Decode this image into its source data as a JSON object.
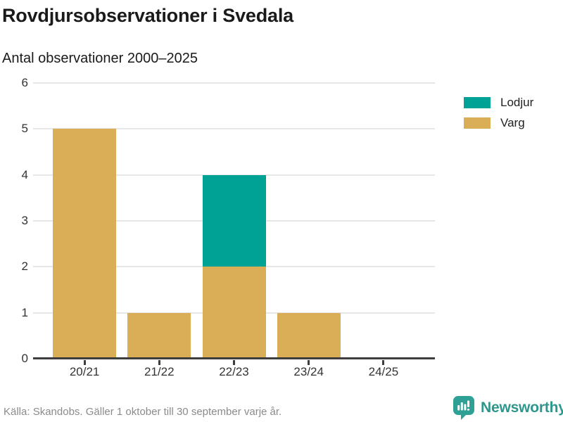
{
  "header": {
    "title": "Rovdjursobservationer i Svedala",
    "subtitle": "Antal observationer 2000–2025"
  },
  "footer": {
    "source": "Källa: Skandobs. Gäller 1 oktober till 30 september varje år.",
    "brand": "Newsworthy"
  },
  "colors": {
    "lodjur": "#00a296",
    "varg": "#d9ae57",
    "brand_teal": "#2e968b",
    "grid": "#e6e8e8",
    "axis": "#3d3d3d",
    "text_dark": "#1a1a1a",
    "text_muted": "#8b8b8b"
  },
  "chart_data": {
    "type": "bar",
    "stacked": true,
    "title": "Rovdjursobservationer i Svedala",
    "subtitle": "Antal observationer 2000–2025",
    "xlabel": "",
    "ylabel": "Antal observationer",
    "categories": [
      "20/21",
      "21/22",
      "22/23",
      "23/24",
      "24/25"
    ],
    "series": [
      {
        "name": "Lodjur",
        "color": "#00a296",
        "values": [
          0,
          0,
          2,
          0,
          0
        ]
      },
      {
        "name": "Varg",
        "color": "#d9ae57",
        "values": [
          5,
          1,
          2,
          1,
          0
        ]
      }
    ],
    "totals": [
      5,
      1,
      4,
      1,
      0
    ],
    "ylim": [
      0,
      6
    ],
    "yticks": [
      0,
      1,
      2,
      3,
      4,
      5,
      6
    ],
    "grid": "horizontal",
    "legend_position": "right"
  }
}
